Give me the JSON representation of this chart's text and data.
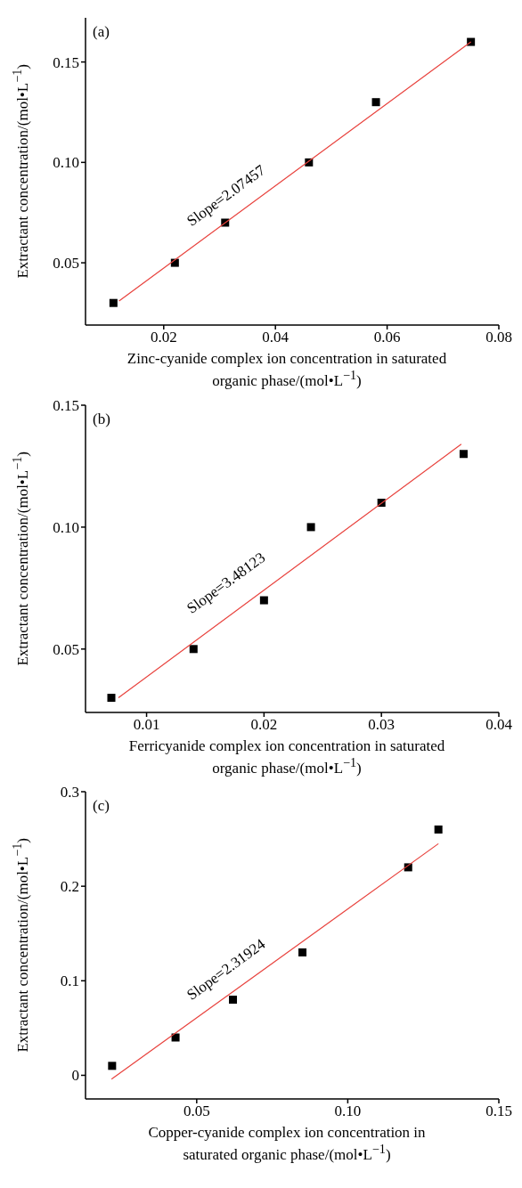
{
  "chart_data": [
    {
      "type": "scatter",
      "xlabel": "Zinc-cyanide complex ion concentration in saturated organic phase/(mol•L$^{−1}$)",
      "ylabel": "Extractant concentration/(mol•L$^{−1}$)",
      "xlim": [
        0.006,
        0.08
      ],
      "ylim": [
        0.019,
        0.172
      ],
      "xticks": [
        0.02,
        0.04,
        0.06,
        0.08
      ],
      "yticks": [
        0.05,
        {
          "value": 0.1,
          "label": "0.10"
        },
        0.15
      ],
      "series": [
        {
          "marker": "square",
          "color": "#000000",
          "x": [
            0.011,
            0.022,
            0.031,
            0.046,
            0.058,
            0.075
          ],
          "values": [
            0.03,
            0.05,
            0.07,
            0.1,
            0.13,
            0.16
          ]
        },
        {
          "type": "line",
          "marker": "none",
          "color": "#e8413c",
          "x": [
            0.012,
            0.075
          ],
          "values": [
            0.031,
            0.16
          ]
        }
      ],
      "annotations": [
        "(a)",
        "Slope=2.07457"
      ]
    },
    {
      "type": "scatter",
      "xlabel": "Ferricyanide complex ion concentration in saturated organic phase/(mol•L$^{−1}$)",
      "ylabel": "Extractant concentration/(mol•L$^{−1}$)",
      "xlim": [
        0.0048,
        0.04
      ],
      "ylim": [
        0.024,
        0.15
      ],
      "xticks": [
        0.01,
        0.02,
        0.03,
        0.04
      ],
      "yticks": [
        0.05,
        {
          "value": 0.1,
          "label": "0.10"
        },
        0.15
      ],
      "series": [
        {
          "marker": "square",
          "color": "#000000",
          "x": [
            0.007,
            0.014,
            0.02,
            0.024,
            0.03,
            0.037
          ],
          "values": [
            0.03,
            0.05,
            0.07,
            0.1,
            0.11,
            0.13
          ]
        },
        {
          "type": "line",
          "marker": "none",
          "color": "#e8413c",
          "x": [
            0.0076,
            0.0368
          ],
          "values": [
            0.03,
            0.134
          ]
        }
      ],
      "annotations": [
        "(b)",
        "Slope=3.48123"
      ]
    },
    {
      "type": "scatter",
      "xlabel": "Copper-cyanide complex ion concentration in saturated organic phase/(mol•L$^{−1}$)",
      "ylabel": "Extractant concentration/(mol•L$^{−1}$)",
      "xlim": [
        0.0132,
        0.15
      ],
      "ylim": [
        -0.025,
        0.3
      ],
      "xticks": [
        0.05,
        {
          "value": 0.1,
          "label": "0.10"
        },
        0.15
      ],
      "yticks": [
        0,
        0.1,
        0.2,
        0.3
      ],
      "series": [
        {
          "marker": "square",
          "color": "#000000",
          "x": [
            0.022,
            0.043,
            0.062,
            0.085,
            0.12,
            0.13
          ],
          "values": [
            0.01,
            0.04,
            0.08,
            0.13,
            0.22,
            0.26
          ]
        },
        {
          "type": "line",
          "marker": "none",
          "color": "#e8413c",
          "x": [
            0.0218,
            0.13
          ],
          "values": [
            -0.004,
            0.245
          ]
        }
      ],
      "annotations": [
        "(c)",
        "Slope=2.31924"
      ]
    }
  ]
}
